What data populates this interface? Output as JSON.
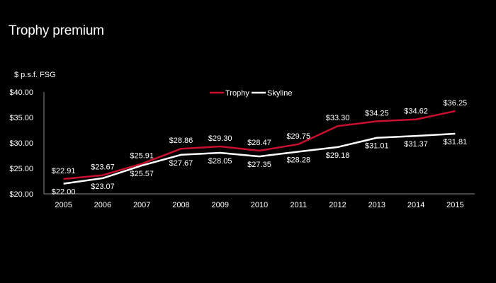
{
  "page": {
    "title": "Trophy premium"
  },
  "colors": {
    "background": "#000000",
    "trophy": "#c8102e",
    "skyline": "#ffffff",
    "text": "#ffffff"
  },
  "chart_data": {
    "type": "line",
    "title": "Trophy premium",
    "ylabel": "$ p.s.f. FSG",
    "xlabel": "",
    "ylim": [
      20,
      40
    ],
    "y_ticks": [
      20,
      25,
      30,
      35,
      40
    ],
    "y_tick_labels": [
      "$20.00",
      "$25.00",
      "$30.00",
      "$35.00",
      "$40.00"
    ],
    "categories": [
      "2005",
      "2006",
      "2007",
      "2008",
      "2009",
      "2010",
      "2011",
      "2012",
      "2013",
      "2014",
      "2015"
    ],
    "legend_position": "top",
    "grid": false,
    "series": [
      {
        "name": "Trophy",
        "color": "#c8102e",
        "values": [
          22.91,
          23.67,
          25.91,
          28.86,
          29.3,
          28.47,
          29.75,
          33.3,
          34.25,
          34.62,
          36.25
        ],
        "labels": [
          "$22.91",
          "$23.67",
          "$25.91",
          "$28.86",
          "$29.30",
          "$28.47",
          "$29.75",
          "$33.30",
          "$34.25",
          "$34.62",
          "$36.25"
        ]
      },
      {
        "name": "Skyline",
        "color": "#ffffff",
        "values": [
          22.0,
          23.07,
          25.57,
          27.67,
          28.05,
          27.35,
          28.28,
          29.18,
          31.01,
          31.37,
          31.81
        ],
        "labels": [
          "$22.00",
          "$23.07",
          "$25.57",
          "$27.67",
          "$28.05",
          "$27.35",
          "$28.28",
          "$29.18",
          "$31.01",
          "$31.37",
          "$31.81"
        ]
      }
    ]
  }
}
